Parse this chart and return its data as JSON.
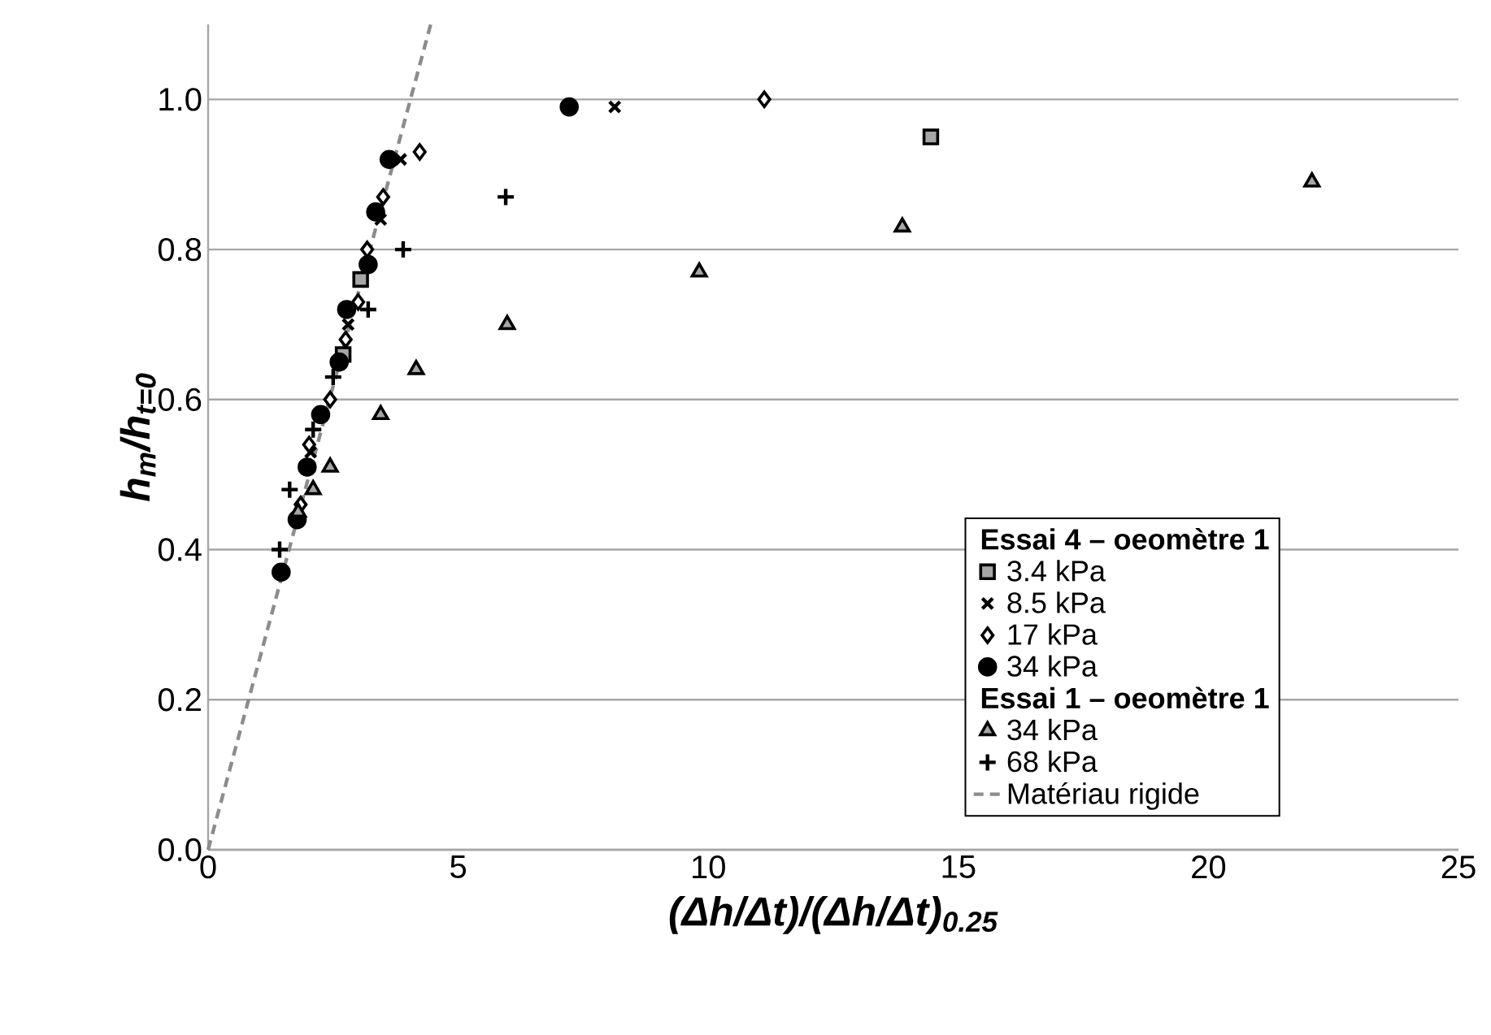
{
  "chart_data": {
    "type": "scatter",
    "xlabel": "(Δh/Δt)/(Δh/Δt)$_{0.25}$",
    "ylabel": "h$_{m}$/h$_{t=0}$",
    "legend_title": "Essai 4 – oeomètre 1",
    "annotations": [
      "Essai 1 – oeomètre 1"
    ],
    "xlim": [
      0,
      25
    ],
    "xticks": [
      0,
      5,
      10,
      15,
      20,
      25
    ],
    "ylim": [
      0,
      1.1
    ],
    "yticks": [
      {
        "value": 0,
        "label": "0.0"
      },
      0.2,
      0.4,
      0.6,
      0.8,
      {
        "value": 1,
        "label": "1.0"
      }
    ],
    "grid": "y",
    "legend": "right",
    "series": [
      {
        "name": "3.4 kPa",
        "marker": "square",
        "color": "#a6a6a6",
        "x": [
          2.7,
          3.05,
          14.45
        ],
        "values": [
          0.66,
          0.76,
          0.95
        ]
      },
      {
        "name": "8.5 kPa",
        "marker": "cross",
        "color": "#000000",
        "x": [
          2.05,
          2.8,
          3.45,
          3.85,
          8.13
        ],
        "values": [
          0.53,
          0.7,
          0.84,
          0.92,
          0.99
        ]
      },
      {
        "name": "17 kPa",
        "marker": "diamond",
        "color": "#ffffff",
        "x": [
          1.85,
          2.02,
          2.44,
          2.75,
          3.0,
          3.18,
          3.5,
          4.23,
          11.12
        ],
        "values": [
          0.46,
          0.54,
          0.6,
          0.68,
          0.73,
          0.8,
          0.87,
          0.93,
          1.0
        ]
      },
      {
        "name": "34 kPa",
        "marker": "circle",
        "color": "#000000",
        "x": [
          1.46,
          1.78,
          1.98,
          2.25,
          2.62,
          2.77,
          3.2,
          3.35,
          3.62,
          7.22
        ],
        "values": [
          0.37,
          0.44,
          0.51,
          0.58,
          0.65,
          0.72,
          0.78,
          0.85,
          0.92,
          0.99
        ]
      },
      {
        "name": "34 kPa",
        "marker": "triangle",
        "color": "#a6a6a6",
        "x": [
          1.8,
          2.1,
          2.44,
          3.45,
          4.16,
          5.98,
          9.82,
          13.88,
          22.07
        ],
        "values": [
          0.45,
          0.48,
          0.51,
          0.58,
          0.64,
          0.7,
          0.77,
          0.83,
          0.89
        ]
      },
      {
        "name": "68 kPa",
        "marker": "plus",
        "color": "#000000",
        "x": [
          1.43,
          1.63,
          2.1,
          2.5,
          3.2,
          3.9,
          5.95
        ],
        "values": [
          0.4,
          0.48,
          0.56,
          0.63,
          0.72,
          0.8,
          0.87
        ]
      },
      {
        "name": "Matériau rigide",
        "type": "line",
        "line_style": "dashed",
        "color": "#8c8c8c",
        "x": [
          0,
          4.45
        ],
        "values": [
          0,
          1.1
        ]
      }
    ]
  }
}
